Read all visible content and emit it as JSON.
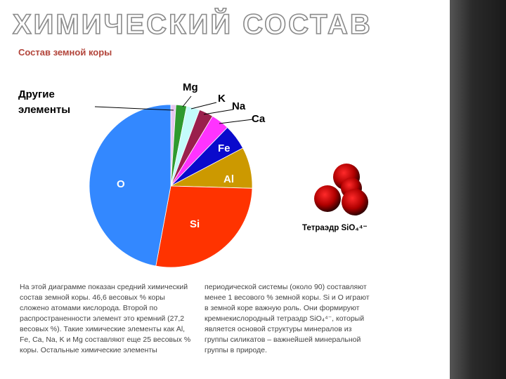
{
  "slide_title": "ХИМИЧЕСКИЙ СОСТАВ",
  "chart_data": {
    "type": "pie",
    "title": "Состав земной коры",
    "categories": [
      "Другие\nэлементы",
      "Mg",
      "K",
      "Na",
      "Ca",
      "Fe",
      "Al",
      "Si",
      "O"
    ],
    "values": [
      1,
      2.1,
      2.6,
      2.8,
      3.6,
      5,
      8.1,
      27.2,
      46.6
    ],
    "colors": [
      "#e6c6f0",
      "#2f9a2f",
      "#c4fbfb",
      "#9a1f4c",
      "#ff33ff",
      "#0a0acc",
      "#cc9900",
      "#ff3300",
      "#3388ff"
    ]
  },
  "figure_caption": "Тетраэдр SiO₄⁴⁻",
  "paragraphs": [
    "На этой диаграмме показан средний химический состав земной коры. 46,6 весовых % коры сложено атомами кислорода. Второй по распространенности элемент это кремний (27,2 весовых %). Такие химические элементы как Al, Fe, Ca, Na, K и Mg составляют еще 25 весовых % коры. Остальные химические элементы",
    "периодической системы (около 90) составляют менее 1 весового % земной коры. Si и O играют в земной коре важную роль. Они формируют кремнекислородный тетраэдр SiO₄⁴⁻, который является основой структуры минералов из группы силикатов – важнейшей минеральной группы в природе."
  ]
}
